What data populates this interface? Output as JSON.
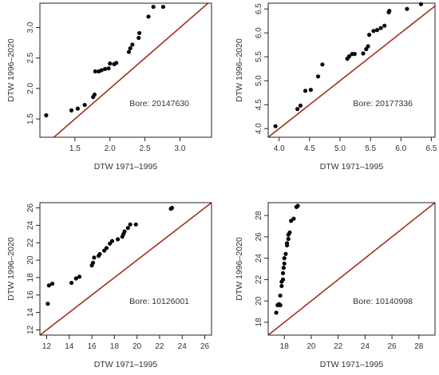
{
  "figure": {
    "colors": {
      "points": "#0a0a0a",
      "reference_line": "#a0301e",
      "axes": "#222222",
      "background": "#ffffff"
    }
  },
  "chart_data": [
    {
      "type": "scatter",
      "annotation": "Bore: 20147630",
      "xlabel": "DTW 1971–1995",
      "ylabel": "DTW 1996–2020",
      "xlim": [
        1.0,
        3.45
      ],
      "ylim": [
        1.2,
        3.4
      ],
      "xticks": [
        1.5,
        2.0,
        2.5,
        3.0
      ],
      "xtick_labels": [
        "1.5",
        "2.0",
        "2.5",
        "3.0"
      ],
      "yticks": [
        1.5,
        2.0,
        2.5,
        3.0
      ],
      "ytick_labels": [
        "1.5",
        "2.0",
        "2.5",
        "3.0"
      ],
      "reference_line": "y = x",
      "grid": false,
      "points": [
        {
          "x": 1.09,
          "y": 1.56
        },
        {
          "x": 1.45,
          "y": 1.64
        },
        {
          "x": 1.54,
          "y": 1.67
        },
        {
          "x": 1.64,
          "y": 1.73
        },
        {
          "x": 1.76,
          "y": 1.86
        },
        {
          "x": 1.78,
          "y": 1.9
        },
        {
          "x": 1.79,
          "y": 2.28
        },
        {
          "x": 1.84,
          "y": 2.28
        },
        {
          "x": 1.88,
          "y": 2.3
        },
        {
          "x": 1.93,
          "y": 2.32
        },
        {
          "x": 1.98,
          "y": 2.33
        },
        {
          "x": 2.0,
          "y": 2.41
        },
        {
          "x": 2.06,
          "y": 2.4
        },
        {
          "x": 2.09,
          "y": 2.42
        },
        {
          "x": 2.27,
          "y": 2.6
        },
        {
          "x": 2.29,
          "y": 2.66
        },
        {
          "x": 2.32,
          "y": 2.72
        },
        {
          "x": 2.41,
          "y": 2.83
        },
        {
          "x": 2.42,
          "y": 2.91
        },
        {
          "x": 2.55,
          "y": 3.18
        },
        {
          "x": 2.62,
          "y": 3.34
        },
        {
          "x": 2.76,
          "y": 3.34
        }
      ]
    },
    {
      "type": "scatter",
      "annotation": "Bore: 20177336",
      "xlabel": "DTW 1971–1995",
      "ylabel": "DTW 1996–2020",
      "xlim": [
        3.82,
        6.56
      ],
      "ylim": [
        3.82,
        6.62
      ],
      "xticks": [
        4.0,
        4.5,
        5.0,
        5.5,
        6.0,
        6.5
      ],
      "xtick_labels": [
        "4.0",
        "4.5",
        "5.0",
        "5.5",
        "6.0",
        "6.5"
      ],
      "yticks": [
        4.0,
        4.5,
        5.0,
        5.5,
        6.0,
        6.5
      ],
      "ytick_labels": [
        "4.0",
        "4.5",
        "5.0",
        "5.5",
        "6.0",
        "6.5"
      ],
      "reference_line": "y = x",
      "grid": false,
      "points": [
        {
          "x": 3.94,
          "y": 4.05
        },
        {
          "x": 4.3,
          "y": 4.41
        },
        {
          "x": 4.35,
          "y": 4.48
        },
        {
          "x": 4.43,
          "y": 4.79
        },
        {
          "x": 4.52,
          "y": 4.81
        },
        {
          "x": 4.64,
          "y": 5.09
        },
        {
          "x": 4.71,
          "y": 5.34
        },
        {
          "x": 5.12,
          "y": 5.46
        },
        {
          "x": 5.15,
          "y": 5.51
        },
        {
          "x": 5.2,
          "y": 5.56
        },
        {
          "x": 5.24,
          "y": 5.56
        },
        {
          "x": 5.38,
          "y": 5.57
        },
        {
          "x": 5.43,
          "y": 5.66
        },
        {
          "x": 5.46,
          "y": 5.72
        },
        {
          "x": 5.48,
          "y": 5.96
        },
        {
          "x": 5.55,
          "y": 6.04
        },
        {
          "x": 5.61,
          "y": 6.06
        },
        {
          "x": 5.67,
          "y": 6.1
        },
        {
          "x": 5.73,
          "y": 6.15
        },
        {
          "x": 5.8,
          "y": 6.43
        },
        {
          "x": 5.81,
          "y": 6.46
        },
        {
          "x": 6.1,
          "y": 6.5
        },
        {
          "x": 6.33,
          "y": 6.6
        }
      ]
    },
    {
      "type": "scatter",
      "annotation": "Bore: 10126001",
      "xlabel": "DTW 1971–1995",
      "ylabel": "DTW 1996–2020",
      "xlim": [
        11.4,
        26.6
      ],
      "ylim": [
        11.4,
        26.6
      ],
      "xticks": [
        12,
        14,
        16,
        18,
        20,
        22,
        24,
        26
      ],
      "xtick_labels": [
        "12",
        "14",
        "16",
        "18",
        "20",
        "22",
        "24",
        "26"
      ],
      "yticks": [
        12,
        14,
        16,
        18,
        20,
        22,
        24,
        26
      ],
      "ytick_labels": [
        "12",
        "14",
        "16",
        "18",
        "20",
        "22",
        "24",
        "26"
      ],
      "reference_line": "y = x",
      "grid": false,
      "points": [
        {
          "x": 12.1,
          "y": 15.0
        },
        {
          "x": 12.2,
          "y": 17.1
        },
        {
          "x": 12.5,
          "y": 17.3
        },
        {
          "x": 14.2,
          "y": 17.4
        },
        {
          "x": 14.6,
          "y": 17.9
        },
        {
          "x": 14.9,
          "y": 18.1
        },
        {
          "x": 16.0,
          "y": 19.4
        },
        {
          "x": 16.1,
          "y": 19.7
        },
        {
          "x": 16.2,
          "y": 20.3
        },
        {
          "x": 16.6,
          "y": 20.5
        },
        {
          "x": 16.7,
          "y": 20.7
        },
        {
          "x": 17.1,
          "y": 21.1
        },
        {
          "x": 17.3,
          "y": 21.4
        },
        {
          "x": 17.6,
          "y": 21.9
        },
        {
          "x": 17.8,
          "y": 22.2
        },
        {
          "x": 18.3,
          "y": 22.4
        },
        {
          "x": 18.7,
          "y": 22.7
        },
        {
          "x": 18.8,
          "y": 23.0
        },
        {
          "x": 18.9,
          "y": 23.3
        },
        {
          "x": 19.2,
          "y": 23.7
        },
        {
          "x": 19.4,
          "y": 24.1
        },
        {
          "x": 19.9,
          "y": 24.1
        },
        {
          "x": 23.0,
          "y": 25.9
        },
        {
          "x": 23.1,
          "y": 26.0
        }
      ]
    },
    {
      "type": "scatter",
      "annotation": "Bore: 10140998",
      "xlabel": "DTW 1971–1995",
      "ylabel": "DTW 1996–2020",
      "xlim": [
        16.8,
        29.2
      ],
      "ylim": [
        16.8,
        29.2
      ],
      "xticks": [
        18,
        20,
        22,
        24,
        26,
        28
      ],
      "xtick_labels": [
        "18",
        "20",
        "22",
        "24",
        "26",
        "28"
      ],
      "yticks": [
        18,
        20,
        22,
        24,
        26,
        28
      ],
      "ytick_labels": [
        "18",
        "20",
        "22",
        "24",
        "26",
        "28"
      ],
      "reference_line": "y = x",
      "grid": false,
      "points": [
        {
          "x": 17.4,
          "y": 18.9
        },
        {
          "x": 17.5,
          "y": 19.6
        },
        {
          "x": 17.6,
          "y": 19.7
        },
        {
          "x": 17.7,
          "y": 19.6
        },
        {
          "x": 17.7,
          "y": 20.5
        },
        {
          "x": 17.8,
          "y": 21.4
        },
        {
          "x": 17.8,
          "y": 21.8
        },
        {
          "x": 17.9,
          "y": 22.0
        },
        {
          "x": 17.9,
          "y": 22.6
        },
        {
          "x": 17.95,
          "y": 23.1
        },
        {
          "x": 18.0,
          "y": 23.5
        },
        {
          "x": 18.0,
          "y": 24.0
        },
        {
          "x": 18.1,
          "y": 24.4
        },
        {
          "x": 18.2,
          "y": 25.2
        },
        {
          "x": 18.2,
          "y": 25.4
        },
        {
          "x": 18.3,
          "y": 25.8
        },
        {
          "x": 18.3,
          "y": 26.2
        },
        {
          "x": 18.4,
          "y": 26.4
        },
        {
          "x": 18.5,
          "y": 27.5
        },
        {
          "x": 18.7,
          "y": 27.7
        },
        {
          "x": 18.9,
          "y": 28.8
        },
        {
          "x": 19.0,
          "y": 28.9
        }
      ]
    }
  ]
}
